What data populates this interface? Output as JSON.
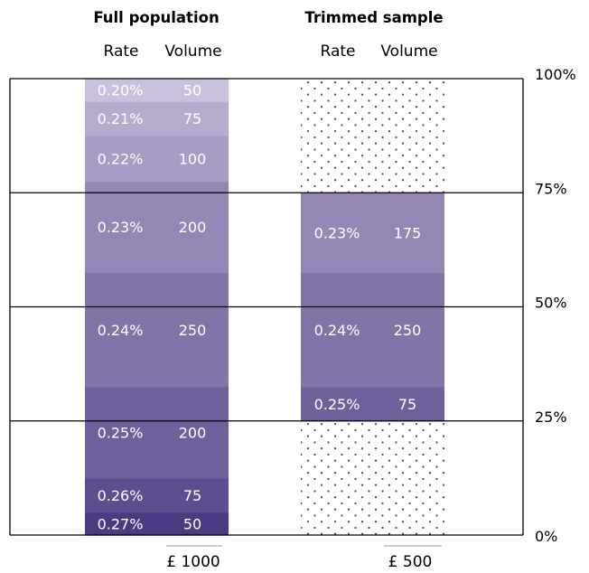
{
  "chart_data": {
    "type": "bar",
    "y_axis": {
      "ticks": [
        "0%",
        "25%",
        "50%",
        "75%",
        "100%"
      ],
      "range": [
        0,
        100
      ]
    },
    "columns": [
      {
        "title": "Full population",
        "headers": {
          "rate": "Rate",
          "volume": "Volume"
        },
        "total_label": "£ 1000",
        "segments": [
          {
            "rate": "0.27%",
            "volume": "50",
            "share_pct": 5,
            "color": "#4b3a82"
          },
          {
            "rate": "0.26%",
            "volume": "75",
            "share_pct": 7.5,
            "color": "#5e4d8f"
          },
          {
            "rate": "0.25%",
            "volume": "200",
            "share_pct": 20,
            "color": "#6f5f9b"
          },
          {
            "rate": "0.24%",
            "volume": "250",
            "share_pct": 25,
            "color": "#8374a8"
          },
          {
            "rate": "0.23%",
            "volume": "200",
            "share_pct": 20,
            "color": "#9487b6"
          },
          {
            "rate": "0.22%",
            "volume": "100",
            "share_pct": 10,
            "color": "#a79cc4"
          },
          {
            "rate": "0.21%",
            "volume": "75",
            "share_pct": 7.5,
            "color": "#b6acce"
          },
          {
            "rate": "0.20%",
            "volume": "50",
            "share_pct": 5,
            "color": "#c8c0dc"
          }
        ]
      },
      {
        "title": "Trimmed sample",
        "headers": {
          "rate": "Rate",
          "volume": "Volume"
        },
        "total_label": "£ 500",
        "excluded_below_pct": 25,
        "excluded_above_pct": 25,
        "segments": [
          {
            "rate": "0.25%",
            "volume": "75",
            "share_pct": 7.5,
            "color": "#6f5f9b"
          },
          {
            "rate": "0.24%",
            "volume": "250",
            "share_pct": 25,
            "color": "#8374a8"
          },
          {
            "rate": "0.23%",
            "volume": "175",
            "share_pct": 17.5,
            "color": "#9487b6"
          }
        ]
      }
    ]
  }
}
